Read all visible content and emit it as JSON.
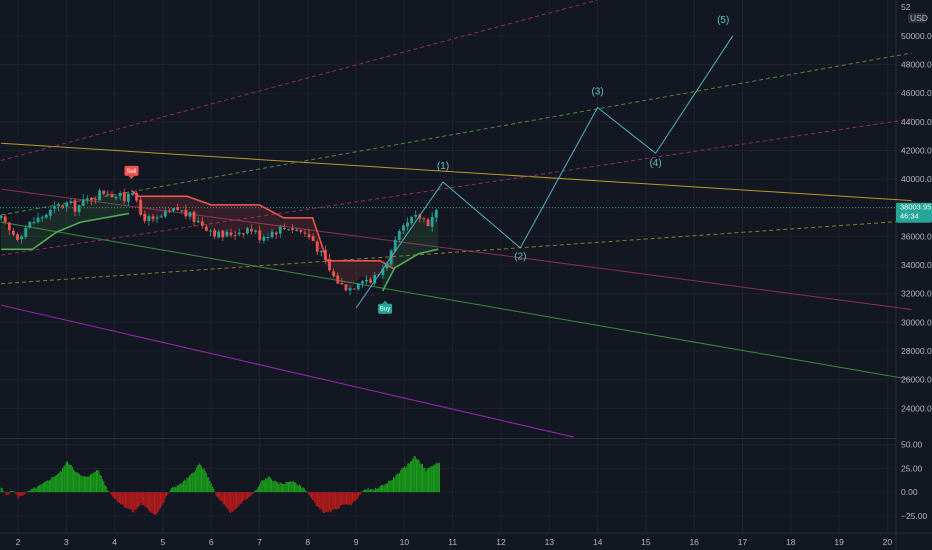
{
  "chart": {
    "currency": "USD",
    "top_cut_label": "52",
    "price_label": "38003.95",
    "countdown_label": "46:34",
    "buy_label": "Buy",
    "sell_label": "Sell"
  },
  "chart_data": {
    "type": "candlestick",
    "main_pane": {
      "y_ticks": [
        "50000.00",
        "48000.00",
        "46000.00",
        "44000.00",
        "42000.00",
        "40000.00",
        "38000.00",
        "36000.00",
        "34000.00",
        "32000.00",
        "30000.00",
        "28000.00",
        "26000.00",
        "24000.00"
      ],
      "ylim": [
        22000,
        52500
      ],
      "xlim": [
        1.65,
        20.5
      ],
      "last_price": 38003.95,
      "candles_close_path": [
        [
          1.65,
          37200
        ],
        [
          1.8,
          36400
        ],
        [
          2.0,
          36000
        ],
        [
          2.2,
          36800
        ],
        [
          2.5,
          37400
        ],
        [
          2.8,
          38000
        ],
        [
          3.0,
          38300
        ],
        [
          3.2,
          38000
        ],
        [
          3.5,
          38700
        ],
        [
          3.8,
          39200
        ],
        [
          4.0,
          38900
        ],
        [
          4.2,
          38600
        ],
        [
          4.35,
          39600
        ],
        [
          4.5,
          37600
        ],
        [
          4.8,
          37000
        ],
        [
          5.0,
          37400
        ],
        [
          5.3,
          37900
        ],
        [
          5.6,
          37300
        ],
        [
          5.9,
          36700
        ],
        [
          6.2,
          36000
        ],
        [
          6.5,
          36300
        ],
        [
          6.8,
          36600
        ],
        [
          7.0,
          36000
        ],
        [
          7.3,
          36400
        ],
        [
          7.6,
          36700
        ],
        [
          7.9,
          36300
        ],
        [
          8.1,
          35800
        ],
        [
          8.3,
          34600
        ],
        [
          8.5,
          33300
        ],
        [
          8.7,
          32600
        ],
        [
          8.9,
          32400
        ],
        [
          9.1,
          33200
        ],
        [
          9.3,
          32900
        ],
        [
          9.5,
          33500
        ],
        [
          9.7,
          34700
        ],
        [
          9.9,
          36100
        ],
        [
          10.1,
          37000
        ],
        [
          10.3,
          37400
        ],
        [
          10.5,
          37000
        ],
        [
          10.7,
          38004
        ]
      ],
      "supertrend": {
        "uptrend_1": [
          [
            1.65,
            35100
          ],
          [
            2.3,
            35100
          ],
          [
            2.8,
            36300
          ],
          [
            3.3,
            37000
          ],
          [
            4.3,
            37600
          ]
        ],
        "downtrend": [
          [
            4.35,
            39200
          ],
          [
            4.5,
            38800
          ],
          [
            5.5,
            38800
          ],
          [
            6.0,
            38200
          ],
          [
            7.0,
            38200
          ],
          [
            7.5,
            37300
          ],
          [
            8.1,
            37300
          ],
          [
            8.4,
            34300
          ],
          [
            9.5,
            34300
          ],
          [
            9.8,
            33700
          ]
        ],
        "uptrend_2": [
          [
            9.55,
            32200
          ],
          [
            9.8,
            33800
          ],
          [
            10.3,
            34800
          ],
          [
            10.7,
            35100
          ]
        ]
      },
      "signals": [
        {
          "type": "Sell",
          "x": 4.35,
          "price": 39600
        },
        {
          "type": "Buy",
          "x": 9.6,
          "price": 32000
        }
      ],
      "elliott_wave": {
        "points": [
          [
            9.0,
            31000
          ],
          [
            10.8,
            39800
          ],
          [
            12.4,
            35200
          ],
          [
            14.0,
            45000
          ],
          [
            15.2,
            41800
          ],
          [
            16.8,
            50000
          ]
        ],
        "labels": [
          {
            "text": "(1)",
            "x": 10.8,
            "price": 40700
          },
          {
            "text": "(2)",
            "x": 12.4,
            "price": 34400
          },
          {
            "text": "(3)",
            "x": 14.0,
            "price": 45900
          },
          {
            "text": "(4)",
            "x": 15.2,
            "price": 40900
          },
          {
            "text": "(5)",
            "x": 16.6,
            "price": 50900
          }
        ]
      },
      "trend_lines": [
        {
          "color": "#b89a2e",
          "style": "solid",
          "points": [
            [
              1.65,
              42500
            ],
            [
              20.5,
              38500
            ]
          ]
        },
        {
          "color": "#8e2d5c",
          "style": "solid",
          "points": [
            [
              1.65,
              39300
            ],
            [
              20.5,
              30900
            ]
          ]
        },
        {
          "color": "#3d8b3d",
          "style": "solid",
          "points": [
            [
              1.65,
              37000
            ],
            [
              20.5,
              26000
            ]
          ]
        },
        {
          "color": "#9c27b0",
          "style": "solid",
          "points": [
            [
              1.65,
              31200
            ],
            [
              13.5,
              22000
            ]
          ]
        },
        {
          "color": "#8e2d5c",
          "style": "dashed",
          "points": [
            [
              1.65,
              41300
            ],
            [
              14.0,
              52500
            ]
          ]
        },
        {
          "color": "#4e8a3a",
          "style": "dashed",
          "points": [
            [
              1.65,
              37500
            ],
            [
              20.5,
              48800
            ]
          ]
        },
        {
          "color": "#8e2d5c",
          "style": "dashed",
          "points": [
            [
              1.65,
              34700
            ],
            [
              20.5,
              44200
            ]
          ]
        },
        {
          "color": "#8a7a32",
          "style": "dashed",
          "points": [
            [
              1.65,
              32700
            ],
            [
              20.5,
              37100
            ]
          ]
        }
      ]
    },
    "oscillator_pane": {
      "type": "histogram",
      "y_ticks": [
        "50.00",
        "25.00",
        "0.00",
        "−25.00"
      ],
      "ylim": [
        -42,
        55
      ],
      "values_path": [
        [
          1.65,
          5
        ],
        [
          1.75,
          -3
        ],
        [
          1.9,
          2
        ],
        [
          2.0,
          -6
        ],
        [
          2.1,
          -3
        ],
        [
          2.3,
          3
        ],
        [
          2.5,
          8
        ],
        [
          2.7,
          15
        ],
        [
          2.9,
          22
        ],
        [
          3.0,
          32
        ],
        [
          3.1,
          29
        ],
        [
          3.2,
          21
        ],
        [
          3.35,
          16
        ],
        [
          3.5,
          18
        ],
        [
          3.65,
          24
        ],
        [
          3.75,
          14
        ],
        [
          3.85,
          3
        ],
        [
          4.0,
          -7
        ],
        [
          4.2,
          -15
        ],
        [
          4.4,
          -21
        ],
        [
          4.55,
          -12
        ],
        [
          4.7,
          -19
        ],
        [
          4.85,
          -24
        ],
        [
          5.0,
          -13
        ],
        [
          5.1,
          -2
        ],
        [
          5.2,
          5
        ],
        [
          5.35,
          8
        ],
        [
          5.5,
          14
        ],
        [
          5.65,
          22
        ],
        [
          5.75,
          30
        ],
        [
          5.85,
          24
        ],
        [
          6.0,
          10
        ],
        [
          6.1,
          -4
        ],
        [
          6.25,
          -12
        ],
        [
          6.4,
          -23
        ],
        [
          6.5,
          -18
        ],
        [
          6.65,
          -10
        ],
        [
          6.8,
          -5
        ],
        [
          6.95,
          3
        ],
        [
          7.05,
          12
        ],
        [
          7.2,
          16
        ],
        [
          7.35,
          10
        ],
        [
          7.5,
          9
        ],
        [
          7.65,
          12
        ],
        [
          7.8,
          8
        ],
        [
          7.95,
          3
        ],
        [
          8.05,
          -5
        ],
        [
          8.2,
          -15
        ],
        [
          8.35,
          -22
        ],
        [
          8.5,
          -20
        ],
        [
          8.65,
          -16
        ],
        [
          8.8,
          -12
        ],
        [
          8.9,
          -14
        ],
        [
          9.0,
          -7
        ],
        [
          9.1,
          -2
        ],
        [
          9.2,
          4
        ],
        [
          9.35,
          2
        ],
        [
          9.5,
          6
        ],
        [
          9.65,
          10
        ],
        [
          9.8,
          16
        ],
        [
          9.95,
          24
        ],
        [
          10.1,
          30
        ],
        [
          10.2,
          38
        ],
        [
          10.3,
          34
        ],
        [
          10.45,
          23
        ],
        [
          10.55,
          27
        ],
        [
          10.65,
          30
        ],
        [
          10.75,
          32
        ]
      ]
    },
    "x_ticks": [
      "2",
      "3",
      "4",
      "5",
      "6",
      "7",
      "8",
      "9",
      "10",
      "11",
      "12",
      "13",
      "14",
      "15",
      "16",
      "17",
      "18",
      "19",
      "20"
    ]
  }
}
